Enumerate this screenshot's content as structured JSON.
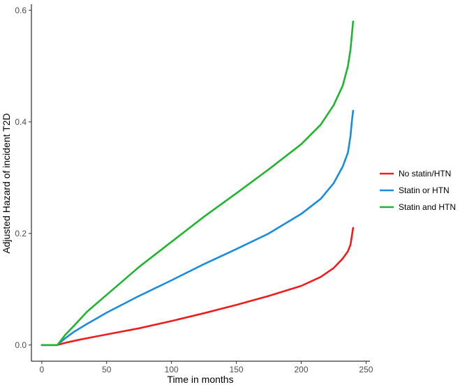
{
  "chart_data": {
    "type": "line",
    "title": "",
    "xlabel": "Time in months",
    "ylabel": "Adjusted Hazard of incident T2D",
    "xlim": [
      -8,
      253
    ],
    "ylim": [
      -0.029,
      0.611
    ],
    "x_ticks": [
      0,
      50,
      100,
      150,
      200,
      250
    ],
    "y_ticks": [
      0.0,
      0.2,
      0.4,
      0.6
    ],
    "x_tick_labels": [
      "0",
      "50",
      "100",
      "150",
      "200",
      "250"
    ],
    "y_tick_labels": [
      "0.0",
      "0.2",
      "0.4",
      "0.6"
    ],
    "grid": false,
    "legend": "right",
    "series": [
      {
        "name": "No statin/HTN",
        "color": "#ee1c1c",
        "points": [
          [
            0,
            0
          ],
          [
            12,
            0
          ],
          [
            20,
            0.005
          ],
          [
            30,
            0.01
          ],
          [
            50,
            0.019
          ],
          [
            75,
            0.03
          ],
          [
            100,
            0.043
          ],
          [
            125,
            0.057
          ],
          [
            150,
            0.072
          ],
          [
            175,
            0.088
          ],
          [
            200,
            0.106
          ],
          [
            215,
            0.122
          ],
          [
            225,
            0.138
          ],
          [
            232,
            0.155
          ],
          [
            236,
            0.168
          ],
          [
            238,
            0.18
          ],
          [
            239,
            0.195
          ],
          [
            240,
            0.21
          ]
        ]
      },
      {
        "name": "Statin or HTN",
        "color": "#1a8cdd",
        "points": [
          [
            0,
            0
          ],
          [
            12,
            0
          ],
          [
            18,
            0.012
          ],
          [
            25,
            0.024
          ],
          [
            35,
            0.038
          ],
          [
            50,
            0.058
          ],
          [
            75,
            0.088
          ],
          [
            100,
            0.116
          ],
          [
            125,
            0.145
          ],
          [
            150,
            0.172
          ],
          [
            175,
            0.2
          ],
          [
            200,
            0.235
          ],
          [
            215,
            0.262
          ],
          [
            225,
            0.29
          ],
          [
            232,
            0.32
          ],
          [
            236,
            0.345
          ],
          [
            238,
            0.375
          ],
          [
            239,
            0.4
          ],
          [
            240,
            0.42
          ]
        ]
      },
      {
        "name": "Statin and HTN",
        "color": "#1fb531",
        "points": [
          [
            0,
            0
          ],
          [
            12,
            0
          ],
          [
            18,
            0.018
          ],
          [
            25,
            0.035
          ],
          [
            35,
            0.06
          ],
          [
            50,
            0.09
          ],
          [
            75,
            0.14
          ],
          [
            100,
            0.185
          ],
          [
            125,
            0.23
          ],
          [
            150,
            0.272
          ],
          [
            175,
            0.315
          ],
          [
            200,
            0.36
          ],
          [
            215,
            0.395
          ],
          [
            225,
            0.43
          ],
          [
            232,
            0.465
          ],
          [
            236,
            0.5
          ],
          [
            238,
            0.53
          ],
          [
            239,
            0.555
          ],
          [
            240,
            0.58
          ]
        ]
      }
    ]
  }
}
